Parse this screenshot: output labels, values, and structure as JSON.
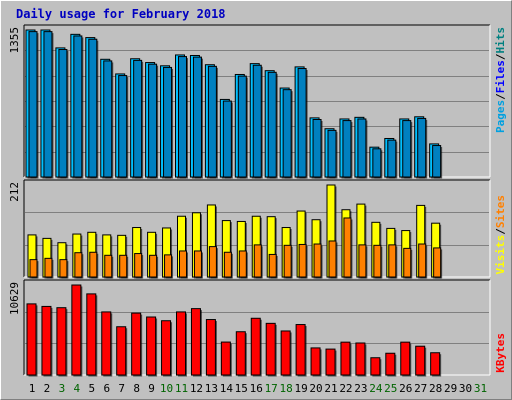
{
  "title": "Daily usage for February 2018",
  "chart_data": [
    {
      "type": "bar",
      "panel": "pages-files-hits",
      "ymax_label": "1355",
      "legend": [
        {
          "name": "Pages",
          "color": "#00a0e0"
        },
        {
          "name": "Files",
          "color": "#0000ff"
        },
        {
          "name": "Hits",
          "color": "#008080"
        }
      ],
      "categories": [
        "1",
        "2",
        "3",
        "4",
        "5",
        "6",
        "7",
        "8",
        "9",
        "10",
        "11",
        "12",
        "13",
        "14",
        "15",
        "16",
        "17",
        "18",
        "19",
        "20",
        "21",
        "22",
        "23",
        "24",
        "25",
        "26",
        "27",
        "28",
        "29",
        "30",
        "31"
      ],
      "series": [
        {
          "name": "Hits",
          "values": [
            1355,
            1355,
            1190,
            1315,
            1285,
            1085,
            950,
            1090,
            1055,
            1025,
            1125,
            1120,
            1035,
            715,
            945,
            1045,
            980,
            820,
            1015,
            545,
            445,
            535,
            550,
            275,
            355,
            535,
            555,
            305,
            null,
            null,
            null
          ]
        },
        {
          "name": "Files",
          "values": [
            1340,
            1340,
            1175,
            1300,
            1270,
            1070,
            935,
            1075,
            1040,
            1010,
            1110,
            1105,
            1020,
            700,
            930,
            1030,
            965,
            805,
            1000,
            530,
            430,
            520,
            535,
            260,
            340,
            520,
            540,
            290,
            null,
            null,
            null
          ]
        }
      ]
    },
    {
      "type": "bar",
      "panel": "visits-sites",
      "ymax_label": "212",
      "legend": [
        {
          "name": "Visits",
          "color": "#ffff00"
        },
        {
          "name": "Sites",
          "color": "#ff8000"
        }
      ],
      "categories": [
        "1",
        "2",
        "3",
        "4",
        "5",
        "6",
        "7",
        "8",
        "9",
        "10",
        "11",
        "12",
        "13",
        "14",
        "15",
        "16",
        "17",
        "18",
        "19",
        "20",
        "21",
        "22",
        "23",
        "24",
        "25",
        "26",
        "27",
        "28",
        "29",
        "30",
        "31"
      ],
      "series": [
        {
          "name": "Visits",
          "values": [
            97,
            89,
            79,
            99,
            103,
            97,
            96,
            114,
            103,
            113,
            140,
            148,
            166,
            130,
            128,
            140,
            139,
            114,
            152,
            132,
            212,
            155,
            168,
            126,
            112,
            107,
            165,
            124,
            null,
            null,
            null
          ]
        },
        {
          "name": "Sites",
          "values": [
            40,
            43,
            40,
            56,
            57,
            50,
            50,
            54,
            50,
            51,
            60,
            60,
            70,
            57,
            60,
            74,
            52,
            73,
            75,
            76,
            83,
            136,
            74,
            73,
            74,
            66,
            76,
            67,
            null,
            null,
            null
          ]
        }
      ]
    },
    {
      "type": "bar",
      "panel": "kbytes",
      "ymax_label": "10629",
      "legend": [
        {
          "name": "KBytes",
          "color": "#ff0000"
        }
      ],
      "categories": [
        "1",
        "2",
        "3",
        "4",
        "5",
        "6",
        "7",
        "8",
        "9",
        "10",
        "11",
        "12",
        "13",
        "14",
        "15",
        "16",
        "17",
        "18",
        "19",
        "20",
        "21",
        "22",
        "23",
        "24",
        "25",
        "26",
        "27",
        "28",
        "29",
        "30",
        "31"
      ],
      "series": [
        {
          "name": "KBytes",
          "values": [
            8400,
            8100,
            7950,
            10629,
            9580,
            7450,
            5700,
            7310,
            6850,
            6410,
            7450,
            7840,
            6550,
            3890,
            5110,
            6700,
            6100,
            5200,
            5960,
            3200,
            3060,
            3880,
            3780,
            2040,
            2570,
            3880,
            3400,
            2630,
            null,
            null,
            null
          ]
        }
      ]
    }
  ],
  "x_labels": [
    {
      "label": "1",
      "color": "#000000"
    },
    {
      "label": "2",
      "color": "#000000"
    },
    {
      "label": "3",
      "color": "#006400"
    },
    {
      "label": "4",
      "color": "#006400"
    },
    {
      "label": "5",
      "color": "#000000"
    },
    {
      "label": "6",
      "color": "#000000"
    },
    {
      "label": "7",
      "color": "#000000"
    },
    {
      "label": "8",
      "color": "#000000"
    },
    {
      "label": "9",
      "color": "#000000"
    },
    {
      "label": "10",
      "color": "#006400"
    },
    {
      "label": "11",
      "color": "#006400"
    },
    {
      "label": "12",
      "color": "#000000"
    },
    {
      "label": "13",
      "color": "#000000"
    },
    {
      "label": "14",
      "color": "#000000"
    },
    {
      "label": "15",
      "color": "#000000"
    },
    {
      "label": "16",
      "color": "#000000"
    },
    {
      "label": "17",
      "color": "#006400"
    },
    {
      "label": "18",
      "color": "#006400"
    },
    {
      "label": "19",
      "color": "#000000"
    },
    {
      "label": "20",
      "color": "#000000"
    },
    {
      "label": "21",
      "color": "#000000"
    },
    {
      "label": "22",
      "color": "#000000"
    },
    {
      "label": "23",
      "color": "#000000"
    },
    {
      "label": "24",
      "color": "#006400"
    },
    {
      "label": "25",
      "color": "#006400"
    },
    {
      "label": "26",
      "color": "#000000"
    },
    {
      "label": "27",
      "color": "#000000"
    },
    {
      "label": "28",
      "color": "#000000"
    },
    {
      "label": "29",
      "color": "#000000"
    },
    {
      "label": "30",
      "color": "#000000"
    },
    {
      "label": "31",
      "color": "#006400"
    }
  ],
  "colors": {
    "background": "#c0c0c0",
    "panel": "#c0c0c0",
    "grid": "#808080",
    "title": "#0000c0",
    "hits_bar": "#00c0ff",
    "files_bar": "#0080c0",
    "visits_bar": "#ffff00",
    "sites_bar": "#ff8000",
    "kbytes_bar": "#ff0000"
  }
}
